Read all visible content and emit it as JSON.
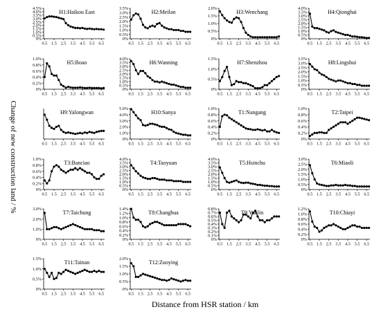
{
  "figure": {
    "xlabel": "Distance from HSR station / km",
    "ylabel": "Change of new construction land / %"
  },
  "chart_data": {
    "type": "line",
    "x": [
      0.5,
      0.75,
      1.0,
      1.25,
      1.5,
      1.75,
      2.0,
      2.25,
      2.5,
      2.75,
      3.0,
      3.25,
      3.5,
      3.75,
      4.0,
      4.25,
      4.5,
      4.75,
      5.0,
      5.25,
      5.5,
      5.75,
      6.0,
      6.25,
      6.5,
      6.75
    ],
    "x_ticks": [
      "0.5",
      "1.5",
      "2.5",
      "3.5",
      "4.5",
      "5.5",
      "6.5"
    ],
    "panels": [
      {
        "title": "H1:Haikou East",
        "y_ticks": [
          "0%",
          "0.5%",
          "1.0%",
          "1.5%",
          "2.0%",
          "2.5%",
          "3.0%",
          "3.5%",
          "4.0%",
          "4.5%"
        ],
        "ylim": [
          0,
          4.5
        ],
        "values": [
          3.0,
          3.2,
          3.3,
          3.3,
          3.25,
          3.2,
          3.1,
          3.0,
          2.9,
          2.3,
          2.0,
          1.8,
          1.7,
          1.6,
          1.6,
          1.55,
          1.6,
          1.5,
          1.45,
          1.5,
          1.45,
          1.4,
          1.45,
          1.4,
          1.4,
          1.35
        ]
      },
      {
        "title": "H2:Meilan",
        "y_ticks": [
          "0%",
          "0.5%",
          "1.0%",
          "1.5%",
          "2.0%",
          "2.5%",
          "3.0%",
          "3.5%"
        ],
        "ylim": [
          0,
          3.5
        ],
        "values": [
          2.2,
          2.7,
          2.9,
          2.8,
          2.3,
          1.6,
          1.3,
          1.2,
          1.4,
          1.5,
          1.4,
          1.7,
          1.8,
          1.5,
          1.3,
          1.2,
          1.1,
          1.1,
          1.0,
          1.0,
          1.0,
          0.9,
          0.9,
          0.8,
          0.8,
          0.8
        ]
      },
      {
        "title": "H3:Wenchang",
        "y_ticks": [
          "0%",
          "0.5%",
          "1.0%",
          "1.5%",
          "2.0%"
        ],
        "ylim": [
          0,
          2.0
        ],
        "values": [
          1.8,
          1.55,
          1.35,
          1.2,
          1.1,
          1.05,
          1.3,
          1.4,
          1.35,
          1.1,
          0.7,
          0.4,
          0.25,
          0.15,
          0.1,
          0.1,
          0.1,
          0.1,
          0.1,
          0.1,
          0.1,
          0.1,
          0.1,
          0.1,
          0.1,
          0.15
        ]
      },
      {
        "title": "H4:Qionghai",
        "y_ticks": [
          "0%",
          "0.5%",
          "1.0%",
          "1.5%",
          "2.0%",
          "2.5%",
          "3.0%",
          "3.5%",
          "4.0%"
        ],
        "ylim": [
          0,
          4.0
        ],
        "values": [
          3.3,
          1.6,
          1.4,
          1.4,
          1.3,
          1.2,
          1.1,
          0.9,
          0.8,
          1.0,
          1.1,
          0.9,
          0.8,
          0.7,
          0.6,
          0.5,
          0.5,
          0.4,
          0.3,
          0.3,
          0.25,
          0.2,
          0.2,
          0.15,
          0.1,
          0.1
        ]
      },
      {
        "title": "H5:Boao",
        "y_ticks": [
          "0%",
          "0.2%",
          "0.4%",
          "0.6%",
          "0.8%",
          "1.0%"
        ],
        "ylim": [
          0,
          1.0
        ],
        "values": [
          0.4,
          0.85,
          0.75,
          0.5,
          0.45,
          0.45,
          0.3,
          0.15,
          0.1,
          0.05,
          0.08,
          0.06,
          0.05,
          0.05,
          0.05,
          0.06,
          0.05,
          0.04,
          0.04,
          0.05,
          0.04,
          0.04,
          0.04,
          0.04,
          0.03,
          0.04
        ]
      },
      {
        "title": "H6:Wanning",
        "y_ticks": [
          "0%",
          "0.5%",
          "1.0%",
          "1.5%",
          "2.0%",
          "2.5%",
          "3.0%",
          "3.5%",
          "4.0%"
        ],
        "ylim": [
          0,
          4.0
        ],
        "values": [
          3.7,
          3.3,
          2.5,
          2.0,
          2.4,
          2.4,
          2.1,
          1.7,
          1.5,
          1.2,
          1.0,
          1.0,
          0.9,
          1.0,
          0.9,
          0.8,
          0.7,
          0.6,
          0.6,
          0.5,
          0.4,
          0.3,
          0.3,
          0.2,
          0.2,
          0.2
        ]
      },
      {
        "title": "H7:Shenzhou",
        "y_ticks": [
          "0%",
          "0.5%",
          "1.0%",
          "1.5%"
        ],
        "ylim": [
          0,
          1.5
        ],
        "values": [
          0.4,
          0.6,
          0.9,
          1.1,
          0.6,
          0.2,
          0.25,
          0.4,
          0.35,
          0.35,
          0.3,
          0.3,
          0.25,
          0.2,
          0.15,
          0.05,
          0.05,
          0.05,
          0.1,
          0.2,
          0.2,
          0.3,
          0.4,
          0.5,
          0.6,
          0.65
        ]
      },
      {
        "title": "H8:Lingshui",
        "y_ticks": [
          "0%",
          "0.5%",
          "1.0%",
          "1.5%",
          "2.0%",
          "2.5%",
          "3.0%",
          "3.5%"
        ],
        "ylim": [
          0,
          3.5
        ],
        "values": [
          2.9,
          2.6,
          2.3,
          2.2,
          1.9,
          1.7,
          1.6,
          1.4,
          1.2,
          1.1,
          1.0,
          0.9,
          1.0,
          1.0,
          0.9,
          0.8,
          0.7,
          0.7,
          0.6,
          0.6,
          0.5,
          0.5,
          0.4,
          0.4,
          0.4,
          0.4
        ]
      },
      {
        "title": "H9:Yalongwan",
        "y_ticks": [],
        "ylim": [
          0,
          3.0
        ],
        "values": [
          2.4,
          1.9,
          1.3,
          1.1,
          1.0,
          1.2,
          1.3,
          0.9,
          0.7,
          0.6,
          0.65,
          0.6,
          0.55,
          0.5,
          0.55,
          0.6,
          0.55,
          0.65,
          0.6,
          0.7,
          0.65,
          0.6,
          0.7,
          0.75,
          0.8,
          0.8
        ]
      },
      {
        "title": "H10:Sanya",
        "y_ticks": [
          "0%",
          "1.0%",
          "2.0%",
          "3.0%",
          "4.0%",
          "5.0%"
        ],
        "ylim": [
          0,
          5.0
        ],
        "values": [
          4.9,
          4.4,
          3.9,
          3.4,
          3.1,
          2.3,
          2.2,
          2.3,
          2.5,
          2.5,
          2.4,
          2.3,
          2.1,
          2.0,
          2.0,
          1.8,
          1.6,
          1.5,
          1.2,
          1.0,
          0.9,
          0.8,
          0.7,
          0.7,
          0.6,
          0.6
        ]
      },
      {
        "title": "T1:Nangang",
        "y_ticks": [
          "0%",
          "0.2%",
          "0.4%",
          "0.6%",
          "0.8%",
          "1.0%"
        ],
        "ylim": [
          0,
          1.0
        ],
        "values": [
          0.4,
          0.75,
          0.8,
          0.78,
          0.7,
          0.65,
          0.6,
          0.55,
          0.5,
          0.45,
          0.4,
          0.35,
          0.33,
          0.32,
          0.3,
          0.3,
          0.32,
          0.3,
          0.28,
          0.3,
          0.25,
          0.25,
          0.3,
          0.25,
          0.22,
          0.2
        ]
      },
      {
        "title": "T2:Taipei",
        "y_ticks": [
          "0%",
          "0.2%",
          "0.4%",
          "0.6%",
          "0.8%",
          "1.0%"
        ],
        "ylim": [
          0,
          1.0
        ],
        "values": [
          0.1,
          0.15,
          0.2,
          0.2,
          0.22,
          0.22,
          0.2,
          0.2,
          0.3,
          0.35,
          0.4,
          0.45,
          0.5,
          0.55,
          0.55,
          0.55,
          0.5,
          0.55,
          0.6,
          0.65,
          0.7,
          0.7,
          0.68,
          0.66,
          0.64,
          0.62
        ]
      },
      {
        "title": "T3:Banciao",
        "y_ticks": [
          "0%",
          "0.2%",
          "0.4%",
          "0.6%",
          "0.8%",
          "1.0%"
        ],
        "ylim": [
          0,
          1.0
        ],
        "values": [
          0.3,
          0.2,
          0.3,
          0.6,
          0.75,
          0.8,
          0.75,
          0.65,
          0.6,
          0.55,
          0.6,
          0.65,
          0.65,
          0.7,
          0.65,
          0.7,
          0.65,
          0.6,
          0.55,
          0.55,
          0.5,
          0.4,
          0.35,
          0.35,
          0.45,
          0.5
        ]
      },
      {
        "title": "T4:Taoyuan",
        "y_ticks": [
          "0%",
          "0.5%",
          "1.0%",
          "1.5%",
          "2.0%",
          "2.5%",
          "3.0%",
          "3.5%",
          "4.0%"
        ],
        "ylim": [
          0,
          4.0
        ],
        "values": [
          3.2,
          2.8,
          2.4,
          2.1,
          1.8,
          1.6,
          1.5,
          1.4,
          1.4,
          1.5,
          1.5,
          1.4,
          1.3,
          1.3,
          1.3,
          1.2,
          1.2,
          1.2,
          1.1,
          1.1,
          1.1,
          1.1,
          1.0,
          1.0,
          1.0,
          1.0
        ]
      },
      {
        "title": "T5:Hsinchu",
        "y_ticks": [
          "0%",
          "0.5%",
          "1.0%",
          "1.5%",
          "2.0%",
          "2.5%",
          "3.0%",
          "3.5%",
          "4.0%"
        ],
        "ylim": [
          0,
          4.0
        ],
        "values": [
          2.9,
          2.2,
          1.5,
          1.0,
          0.9,
          1.0,
          1.1,
          1.2,
          1.0,
          0.9,
          0.85,
          0.9,
          0.9,
          0.8,
          0.75,
          0.7,
          0.6,
          0.6,
          0.55,
          0.5,
          0.5,
          0.45,
          0.45,
          0.4,
          0.4,
          0.4
        ]
      },
      {
        "title": "T6:Miaoli",
        "y_ticks": [
          "0%",
          "0.5%",
          "1.0%",
          "1.5%",
          "2.0%",
          "2.5%",
          "3.0%"
        ],
        "ylim": [
          0,
          3.0
        ],
        "values": [
          2.4,
          1.6,
          1.0,
          0.6,
          0.5,
          0.45,
          0.4,
          0.35,
          0.35,
          0.4,
          0.4,
          0.45,
          0.4,
          0.4,
          0.4,
          0.45,
          0.4,
          0.4,
          0.35,
          0.35,
          0.3,
          0.3,
          0.3,
          0.3,
          0.3,
          0.3
        ]
      },
      {
        "title": "T7:Taichung",
        "y_ticks": [
          "0%",
          "1.0%",
          "2.0%",
          "3.0%"
        ],
        "ylim": [
          0,
          3.0
        ],
        "values": [
          2.6,
          1.0,
          1.0,
          1.1,
          1.2,
          1.2,
          1.1,
          1.0,
          1.1,
          1.2,
          1.3,
          1.4,
          1.5,
          1.4,
          1.3,
          1.2,
          1.1,
          1.0,
          1.0,
          1.0,
          1.0,
          0.9,
          0.9,
          0.9,
          0.8,
          0.8
        ]
      },
      {
        "title": "T8:Changhua",
        "y_ticks": [
          "0%",
          "0.2%",
          "0.4%",
          "0.6%",
          "0.8%",
          "1.0%",
          "1.2%",
          "1.4%"
        ],
        "ylim": [
          0,
          1.4
        ],
        "values": [
          1.4,
          1.0,
          0.9,
          0.9,
          0.8,
          0.6,
          0.55,
          0.6,
          0.7,
          0.75,
          0.8,
          0.8,
          0.75,
          0.7,
          0.65,
          0.65,
          0.65,
          0.65,
          0.65,
          0.65,
          0.7,
          0.7,
          0.7,
          0.7,
          0.65,
          0.6
        ]
      },
      {
        "title": "T9:Yunlin",
        "y_ticks": [
          "0%",
          "0.1%",
          "0.2%",
          "0.3%",
          "0.4%",
          "0.5%",
          "0.6%",
          "0.7%",
          "0.8%"
        ],
        "ylim": [
          0,
          0.8
        ],
        "values": [
          0.7,
          0.4,
          0.3,
          0.7,
          0.75,
          0.6,
          0.55,
          0.5,
          0.45,
          0.5,
          0.65,
          0.65,
          0.6,
          0.55,
          0.7,
          0.75,
          0.6,
          0.5,
          0.5,
          0.45,
          0.5,
          0.5,
          0.55,
          0.6,
          0.6,
          0.6
        ]
      },
      {
        "title": "T10:Chiayi",
        "y_ticks": [
          "0%",
          "0.2%",
          "0.4%",
          "0.6%",
          "0.8%",
          "1.0%",
          "1.2%"
        ],
        "ylim": [
          0,
          1.2
        ],
        "values": [
          1.1,
          0.7,
          0.5,
          0.45,
          0.3,
          0.35,
          0.45,
          0.5,
          0.55,
          0.55,
          0.6,
          0.55,
          0.5,
          0.45,
          0.4,
          0.4,
          0.45,
          0.5,
          0.55,
          0.55,
          0.5,
          0.5,
          0.45,
          0.45,
          0.45,
          0.45
        ]
      },
      {
        "title": "T11:Tainan",
        "y_ticks": [
          "0%",
          "0.5%",
          "1.0%",
          "1.5%"
        ],
        "ylim": [
          0,
          1.5
        ],
        "values": [
          1.0,
          0.8,
          0.6,
          0.8,
          0.5,
          0.55,
          0.8,
          0.75,
          0.85,
          0.95,
          0.9,
          0.85,
          0.8,
          0.75,
          0.8,
          0.85,
          0.9,
          0.95,
          0.9,
          0.85,
          0.85,
          0.9,
          0.85,
          0.9,
          0.85,
          0.85
        ]
      },
      {
        "title": "T12:Zuoying",
        "y_ticks": [
          "0%",
          "0.5%",
          "1.0%",
          "1.5%",
          "2.0%"
        ],
        "ylim": [
          0,
          2.0
        ],
        "values": [
          1.7,
          1.5,
          0.8,
          0.8,
          0.9,
          1.0,
          0.95,
          0.9,
          0.85,
          0.8,
          0.75,
          0.7,
          0.65,
          0.6,
          0.6,
          0.55,
          0.6,
          0.7,
          0.65,
          0.6,
          0.55,
          0.5,
          0.55,
          0.6,
          0.55,
          0.55
        ]
      }
    ]
  }
}
